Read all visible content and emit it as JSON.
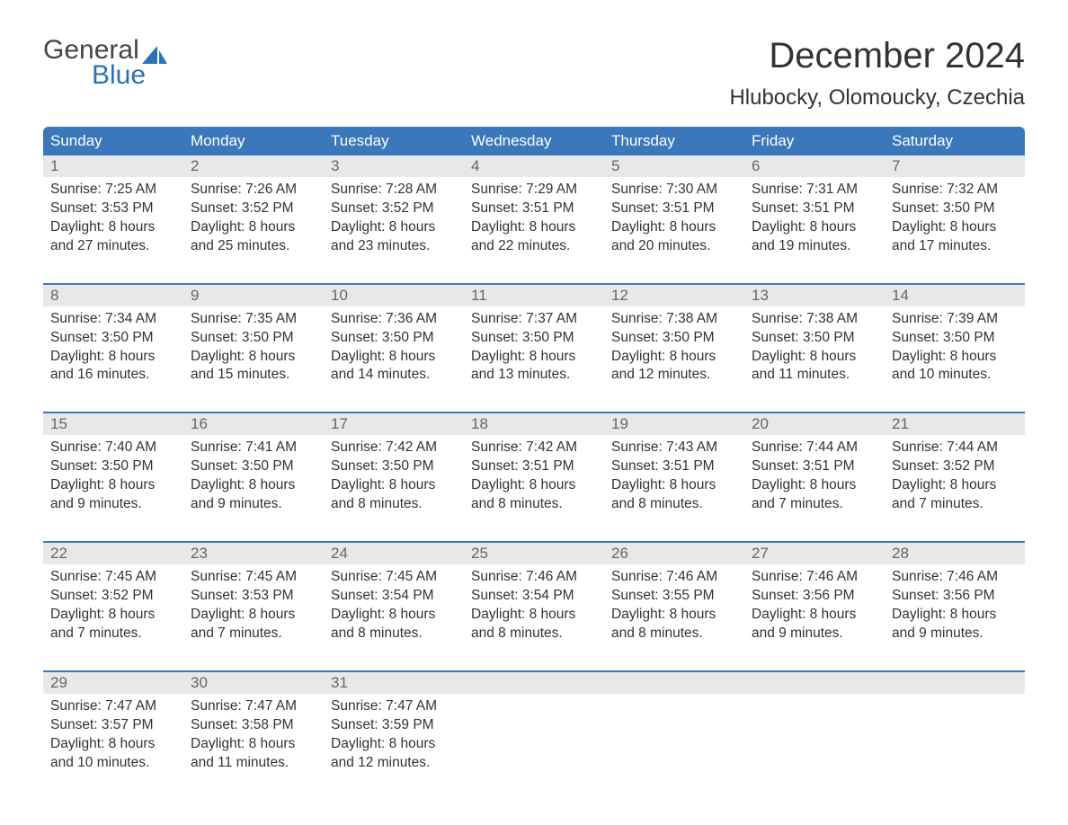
{
  "logo": {
    "word1": "General",
    "word2": "Blue",
    "accent_color": "#2c71b7"
  },
  "title": "December 2024",
  "location": "Hlubocky, Olomoucky, Czechia",
  "colors": {
    "header_bg": "#3a78bb",
    "header_text": "#ffffff",
    "daynum_bg": "#e8e8e8",
    "daynum_text": "#666666",
    "body_text": "#333333",
    "week_border": "#3a78bb",
    "page_bg": "#ffffff"
  },
  "days_of_week": [
    "Sunday",
    "Monday",
    "Tuesday",
    "Wednesday",
    "Thursday",
    "Friday",
    "Saturday"
  ],
  "weeks": [
    [
      {
        "n": "1",
        "sunrise": "Sunrise: 7:25 AM",
        "sunset": "Sunset: 3:53 PM",
        "d1": "Daylight: 8 hours",
        "d2": "and 27 minutes."
      },
      {
        "n": "2",
        "sunrise": "Sunrise: 7:26 AM",
        "sunset": "Sunset: 3:52 PM",
        "d1": "Daylight: 8 hours",
        "d2": "and 25 minutes."
      },
      {
        "n": "3",
        "sunrise": "Sunrise: 7:28 AM",
        "sunset": "Sunset: 3:52 PM",
        "d1": "Daylight: 8 hours",
        "d2": "and 23 minutes."
      },
      {
        "n": "4",
        "sunrise": "Sunrise: 7:29 AM",
        "sunset": "Sunset: 3:51 PM",
        "d1": "Daylight: 8 hours",
        "d2": "and 22 minutes."
      },
      {
        "n": "5",
        "sunrise": "Sunrise: 7:30 AM",
        "sunset": "Sunset: 3:51 PM",
        "d1": "Daylight: 8 hours",
        "d2": "and 20 minutes."
      },
      {
        "n": "6",
        "sunrise": "Sunrise: 7:31 AM",
        "sunset": "Sunset: 3:51 PM",
        "d1": "Daylight: 8 hours",
        "d2": "and 19 minutes."
      },
      {
        "n": "7",
        "sunrise": "Sunrise: 7:32 AM",
        "sunset": "Sunset: 3:50 PM",
        "d1": "Daylight: 8 hours",
        "d2": "and 17 minutes."
      }
    ],
    [
      {
        "n": "8",
        "sunrise": "Sunrise: 7:34 AM",
        "sunset": "Sunset: 3:50 PM",
        "d1": "Daylight: 8 hours",
        "d2": "and 16 minutes."
      },
      {
        "n": "9",
        "sunrise": "Sunrise: 7:35 AM",
        "sunset": "Sunset: 3:50 PM",
        "d1": "Daylight: 8 hours",
        "d2": "and 15 minutes."
      },
      {
        "n": "10",
        "sunrise": "Sunrise: 7:36 AM",
        "sunset": "Sunset: 3:50 PM",
        "d1": "Daylight: 8 hours",
        "d2": "and 14 minutes."
      },
      {
        "n": "11",
        "sunrise": "Sunrise: 7:37 AM",
        "sunset": "Sunset: 3:50 PM",
        "d1": "Daylight: 8 hours",
        "d2": "and 13 minutes."
      },
      {
        "n": "12",
        "sunrise": "Sunrise: 7:38 AM",
        "sunset": "Sunset: 3:50 PM",
        "d1": "Daylight: 8 hours",
        "d2": "and 12 minutes."
      },
      {
        "n": "13",
        "sunrise": "Sunrise: 7:38 AM",
        "sunset": "Sunset: 3:50 PM",
        "d1": "Daylight: 8 hours",
        "d2": "and 11 minutes."
      },
      {
        "n": "14",
        "sunrise": "Sunrise: 7:39 AM",
        "sunset": "Sunset: 3:50 PM",
        "d1": "Daylight: 8 hours",
        "d2": "and 10 minutes."
      }
    ],
    [
      {
        "n": "15",
        "sunrise": "Sunrise: 7:40 AM",
        "sunset": "Sunset: 3:50 PM",
        "d1": "Daylight: 8 hours",
        "d2": "and 9 minutes."
      },
      {
        "n": "16",
        "sunrise": "Sunrise: 7:41 AM",
        "sunset": "Sunset: 3:50 PM",
        "d1": "Daylight: 8 hours",
        "d2": "and 9 minutes."
      },
      {
        "n": "17",
        "sunrise": "Sunrise: 7:42 AM",
        "sunset": "Sunset: 3:50 PM",
        "d1": "Daylight: 8 hours",
        "d2": "and 8 minutes."
      },
      {
        "n": "18",
        "sunrise": "Sunrise: 7:42 AM",
        "sunset": "Sunset: 3:51 PM",
        "d1": "Daylight: 8 hours",
        "d2": "and 8 minutes."
      },
      {
        "n": "19",
        "sunrise": "Sunrise: 7:43 AM",
        "sunset": "Sunset: 3:51 PM",
        "d1": "Daylight: 8 hours",
        "d2": "and 8 minutes."
      },
      {
        "n": "20",
        "sunrise": "Sunrise: 7:44 AM",
        "sunset": "Sunset: 3:51 PM",
        "d1": "Daylight: 8 hours",
        "d2": "and 7 minutes."
      },
      {
        "n": "21",
        "sunrise": "Sunrise: 7:44 AM",
        "sunset": "Sunset: 3:52 PM",
        "d1": "Daylight: 8 hours",
        "d2": "and 7 minutes."
      }
    ],
    [
      {
        "n": "22",
        "sunrise": "Sunrise: 7:45 AM",
        "sunset": "Sunset: 3:52 PM",
        "d1": "Daylight: 8 hours",
        "d2": "and 7 minutes."
      },
      {
        "n": "23",
        "sunrise": "Sunrise: 7:45 AM",
        "sunset": "Sunset: 3:53 PM",
        "d1": "Daylight: 8 hours",
        "d2": "and 7 minutes."
      },
      {
        "n": "24",
        "sunrise": "Sunrise: 7:45 AM",
        "sunset": "Sunset: 3:54 PM",
        "d1": "Daylight: 8 hours",
        "d2": "and 8 minutes."
      },
      {
        "n": "25",
        "sunrise": "Sunrise: 7:46 AM",
        "sunset": "Sunset: 3:54 PM",
        "d1": "Daylight: 8 hours",
        "d2": "and 8 minutes."
      },
      {
        "n": "26",
        "sunrise": "Sunrise: 7:46 AM",
        "sunset": "Sunset: 3:55 PM",
        "d1": "Daylight: 8 hours",
        "d2": "and 8 minutes."
      },
      {
        "n": "27",
        "sunrise": "Sunrise: 7:46 AM",
        "sunset": "Sunset: 3:56 PM",
        "d1": "Daylight: 8 hours",
        "d2": "and 9 minutes."
      },
      {
        "n": "28",
        "sunrise": "Sunrise: 7:46 AM",
        "sunset": "Sunset: 3:56 PM",
        "d1": "Daylight: 8 hours",
        "d2": "and 9 minutes."
      }
    ],
    [
      {
        "n": "29",
        "sunrise": "Sunrise: 7:47 AM",
        "sunset": "Sunset: 3:57 PM",
        "d1": "Daylight: 8 hours",
        "d2": "and 10 minutes."
      },
      {
        "n": "30",
        "sunrise": "Sunrise: 7:47 AM",
        "sunset": "Sunset: 3:58 PM",
        "d1": "Daylight: 8 hours",
        "d2": "and 11 minutes."
      },
      {
        "n": "31",
        "sunrise": "Sunrise: 7:47 AM",
        "sunset": "Sunset: 3:59 PM",
        "d1": "Daylight: 8 hours",
        "d2": "and 12 minutes."
      },
      null,
      null,
      null,
      null
    ]
  ]
}
